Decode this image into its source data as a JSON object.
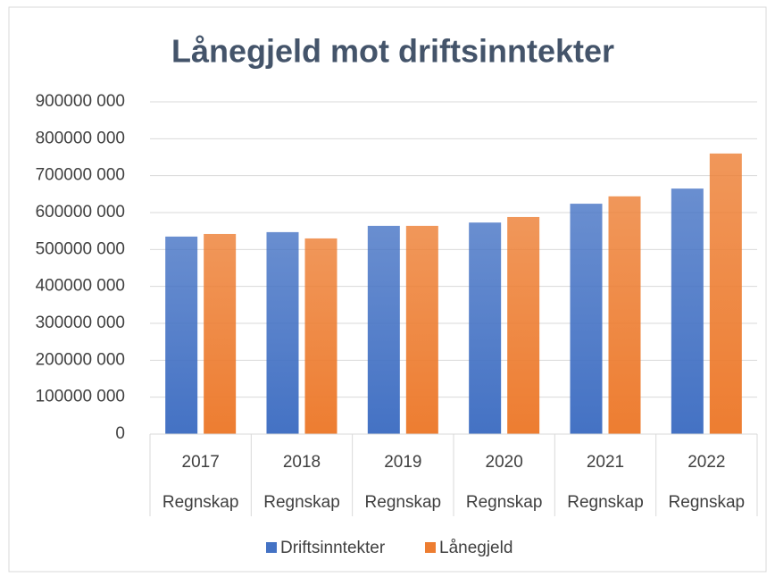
{
  "chart_data": {
    "type": "bar",
    "title": "Lånegjeld mot driftsinntekter",
    "categories": [
      "2017",
      "2018",
      "2019",
      "2020",
      "2021",
      "2022"
    ],
    "category_sublabels": [
      "Regnskap",
      "Regnskap",
      "Regnskap",
      "Regnskap",
      "Regnskap",
      "Regnskap"
    ],
    "series": [
      {
        "name": "Driftsinntekter",
        "color": "#4472c4",
        "values": [
          535000000,
          547000000,
          564000000,
          573000000,
          624000000,
          665000000
        ]
      },
      {
        "name": "Lånegjeld",
        "color": "#ed7d31",
        "values": [
          542000000,
          530000000,
          564000000,
          588000000,
          644000000,
          760000000
        ]
      }
    ],
    "ylim": [
      0,
      900000000
    ],
    "yticks": [
      0,
      {
        "value": 100000000,
        "label": "100000 000"
      },
      {
        "value": 200000000,
        "label": "200000 000"
      },
      {
        "value": 300000000,
        "label": "300000 000"
      },
      {
        "value": 400000000,
        "label": "400000 000"
      },
      {
        "value": 500000000,
        "label": "500000 000"
      },
      {
        "value": 600000000,
        "label": "600000 000"
      },
      {
        "value": 700000000,
        "label": "700000 000"
      },
      {
        "value": 800000000,
        "label": "800000 000"
      },
      {
        "value": 900000000,
        "label": "900000 000"
      }
    ],
    "grid": true,
    "legend": "bottom"
  }
}
